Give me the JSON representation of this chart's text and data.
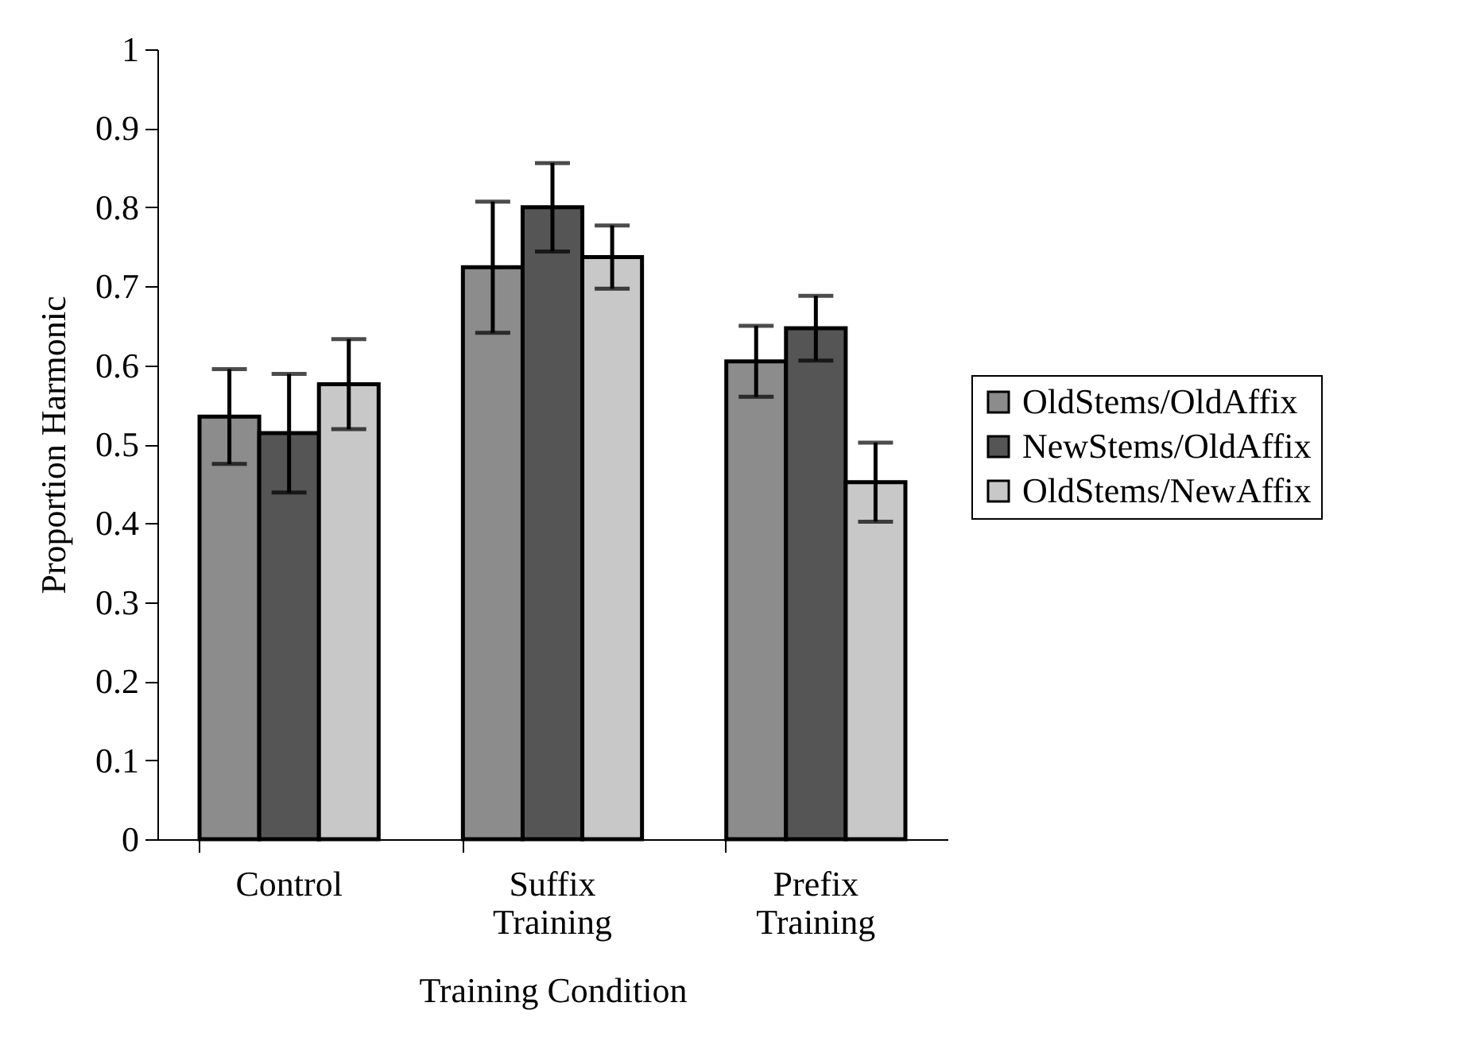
{
  "chart_data": {
    "type": "bar",
    "xlabel": "Training Condition",
    "ylabel": "Proportion Harmonic",
    "categories": [
      "Control",
      "Suffix Training",
      "Prefix Training"
    ],
    "series": [
      {
        "name": "OldStems/OldAffix",
        "color": "#8c8c8c",
        "values": [
          0.535,
          0.724,
          0.605
        ],
        "errors": [
          0.06,
          0.083,
          0.045
        ]
      },
      {
        "name": "NewStems/OldAffix",
        "color": "#555555",
        "values": [
          0.514,
          0.8,
          0.647
        ],
        "errors": [
          0.075,
          0.056,
          0.041
        ]
      },
      {
        "name": "OldStems/NewAffix",
        "color": "#c8c8c8",
        "values": [
          0.576,
          0.737,
          0.452
        ],
        "errors": [
          0.057,
          0.04,
          0.05
        ]
      }
    ],
    "ylim": [
      0,
      1
    ],
    "yticks": [
      0,
      0.1,
      0.2,
      0.3,
      0.4,
      0.5,
      0.6,
      0.7,
      0.8,
      0.9,
      1
    ],
    "grid": false,
    "legend": "right"
  }
}
